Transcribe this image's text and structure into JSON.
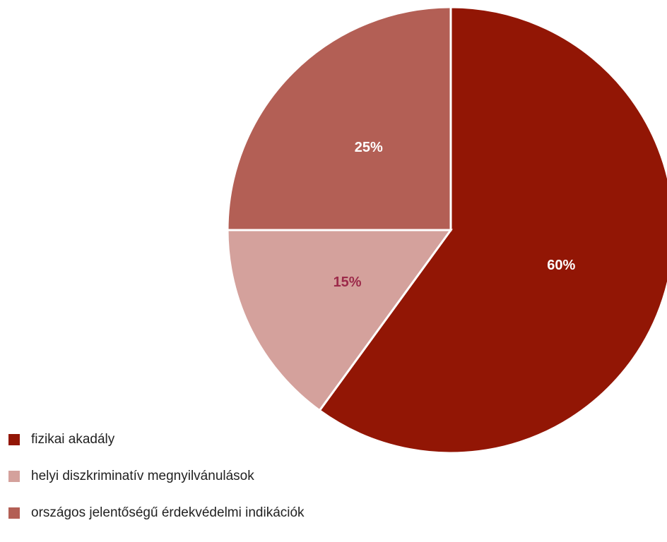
{
  "chart_data": {
    "type": "pie",
    "categories": [
      "fizikai akadály",
      "helyi diszkriminatív megnyilvánulások",
      "országos jelentőségű érdekvédelmi indikációk"
    ],
    "values": [
      60,
      15,
      25
    ],
    "data_labels": [
      "60%",
      "15%",
      "25%"
    ],
    "colors": [
      "#921605",
      "#d4a19c",
      "#b35f55"
    ],
    "label_colors": [
      "#ffffff",
      "#9c2a4a",
      "#ffffff"
    ],
    "start": "top, clockwise",
    "legend_position": "bottom-left"
  },
  "legend": {
    "items": [
      {
        "label": "fizikai akadály",
        "color": "#921605"
      },
      {
        "label": "helyi diszkriminatív megnyilvánulások",
        "color": "#d4a19c"
      },
      {
        "label": "országos jelentőségű érdekvédelmi indikációk",
        "color": "#b35f55"
      }
    ]
  }
}
